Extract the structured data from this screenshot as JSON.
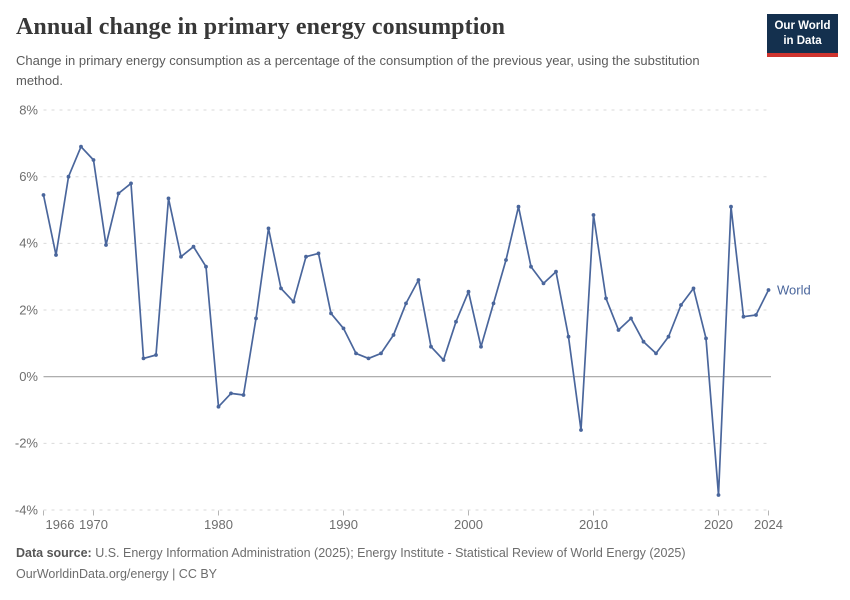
{
  "header": {
    "title": "Annual change in primary energy consumption",
    "subtitle": "Change in primary energy consumption as a percentage of the consumption of the previous year, using the substitution method.",
    "logo": {
      "line1": "Our World",
      "line2": "in Data"
    }
  },
  "chart_data": {
    "type": "line",
    "title": "Annual change in primary energy consumption",
    "xlabel": "",
    "ylabel": "",
    "xlim": [
      1966,
      2024
    ],
    "ylim": [
      -4,
      8
    ],
    "grid": "horizontal-dashed",
    "legend_position": "end-of-line-label",
    "yticks": [
      {
        "value": 8,
        "label": "8%"
      },
      {
        "value": 6,
        "label": "6%"
      },
      {
        "value": 4,
        "label": "4%"
      },
      {
        "value": 2,
        "label": "2%"
      },
      {
        "value": 0,
        "label": "0%"
      },
      {
        "value": -2,
        "label": "-2%"
      },
      {
        "value": -4,
        "label": "-4%"
      }
    ],
    "xticks": [
      {
        "value": 1966,
        "label": "1966"
      },
      {
        "value": 1970,
        "label": "1970"
      },
      {
        "value": 1980,
        "label": "1980"
      },
      {
        "value": 1990,
        "label": "1990"
      },
      {
        "value": 2000,
        "label": "2000"
      },
      {
        "value": 2010,
        "label": "2010"
      },
      {
        "value": 2020,
        "label": "2020"
      },
      {
        "value": 2024,
        "label": "2024"
      }
    ],
    "series": [
      {
        "name": "World",
        "color": "#4a669c",
        "x": [
          1966,
          1967,
          1968,
          1969,
          1970,
          1971,
          1972,
          1973,
          1974,
          1975,
          1976,
          1977,
          1978,
          1979,
          1980,
          1981,
          1982,
          1983,
          1984,
          1985,
          1986,
          1987,
          1988,
          1989,
          1990,
          1991,
          1992,
          1993,
          1994,
          1995,
          1996,
          1997,
          1998,
          1999,
          2000,
          2001,
          2002,
          2003,
          2004,
          2005,
          2006,
          2007,
          2008,
          2009,
          2010,
          2011,
          2012,
          2013,
          2014,
          2015,
          2016,
          2017,
          2018,
          2019,
          2020,
          2021,
          2022,
          2023,
          2024
        ],
        "values": [
          5.45,
          3.65,
          6.0,
          6.9,
          6.5,
          3.95,
          5.5,
          5.8,
          0.55,
          0.65,
          5.35,
          3.6,
          3.9,
          3.3,
          -0.9,
          -0.5,
          -0.55,
          1.75,
          4.45,
          2.65,
          2.25,
          3.6,
          3.7,
          1.9,
          1.45,
          0.7,
          0.55,
          0.7,
          1.25,
          2.2,
          2.9,
          0.9,
          0.5,
          1.65,
          2.55,
          0.9,
          2.2,
          3.5,
          5.1,
          3.3,
          2.8,
          3.15,
          1.2,
          -1.6,
          4.85,
          2.35,
          1.4,
          1.75,
          1.05,
          0.7,
          1.2,
          2.15,
          2.65,
          1.15,
          -3.55,
          5.1,
          1.8,
          1.85,
          2.6
        ]
      }
    ]
  },
  "footer": {
    "source_label": "Data source:",
    "source_text": " U.S. Energy Information Administration (2025); Energy Institute - Statistical Review of World Energy (2025)",
    "link_line": "OurWorldinData.org/energy | CC BY"
  },
  "colors": {
    "line": "#4a669c",
    "grid_dashed": "#dadada",
    "zero_line": "#a3a3a3",
    "axis_tick": "#b5b5b5",
    "axis_text": "#6e6e6e",
    "logo_bg": "#14304e",
    "logo_accent": "#cf342e"
  }
}
